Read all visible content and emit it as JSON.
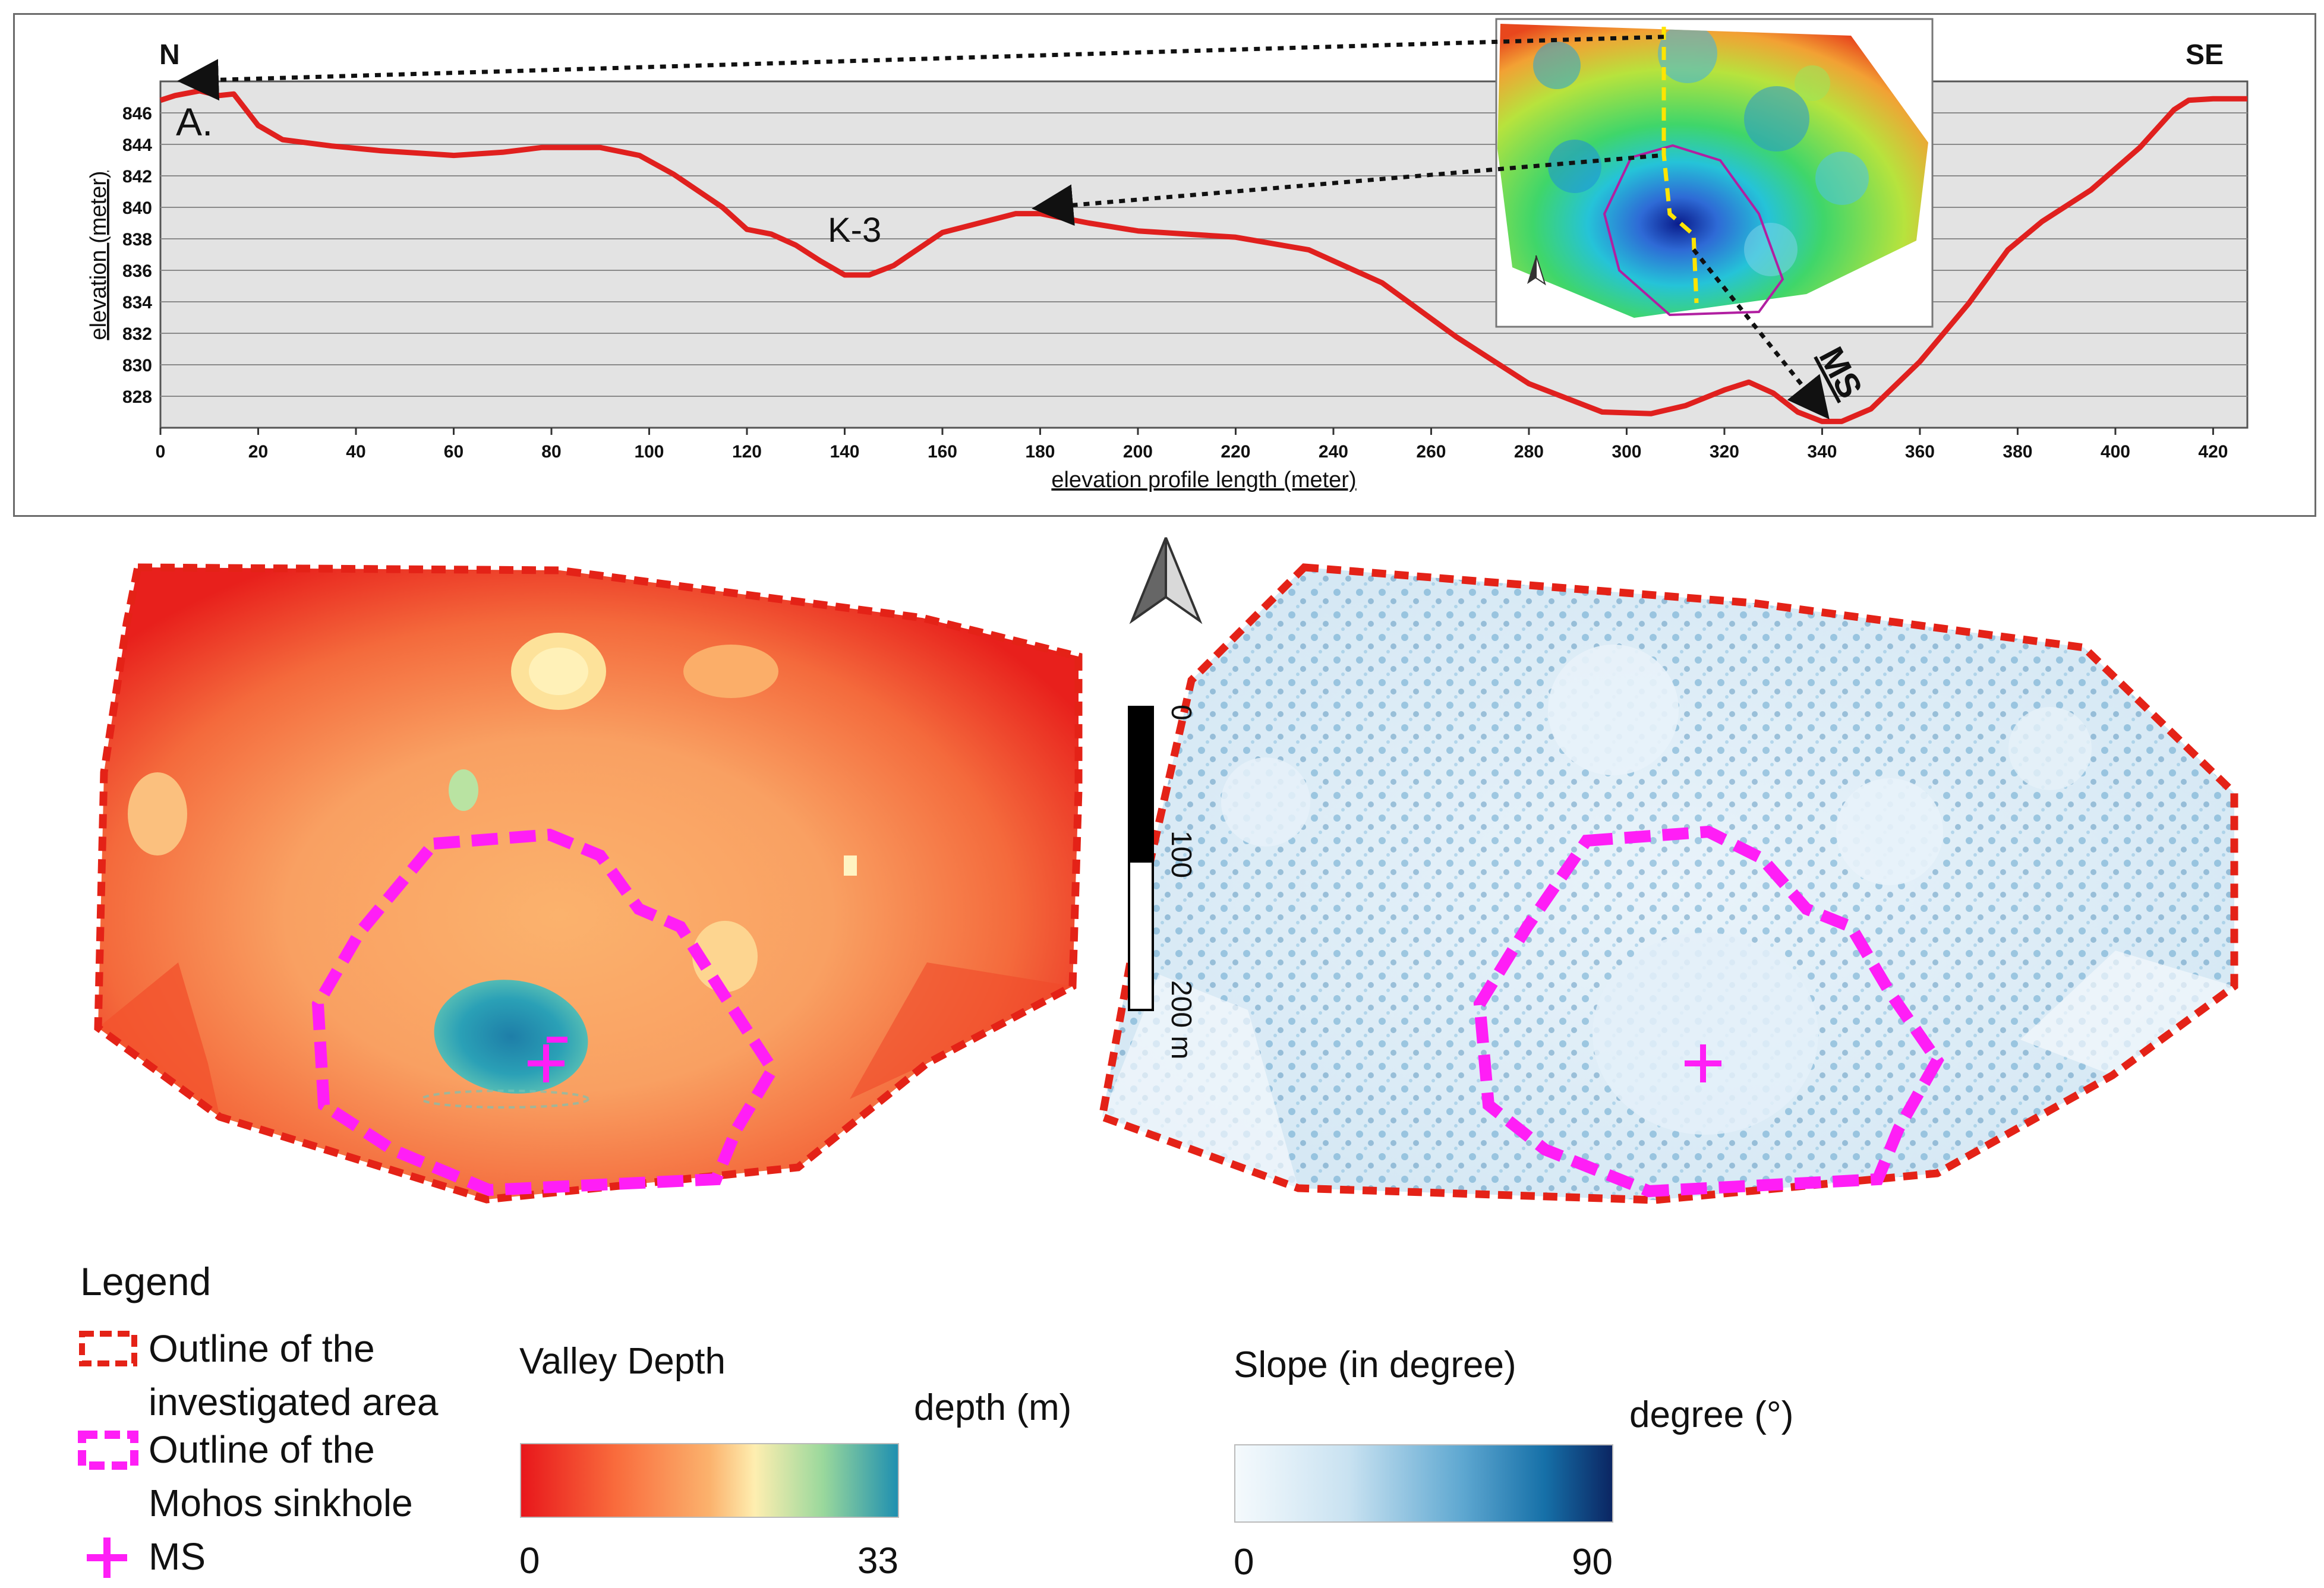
{
  "profile": {
    "start_dir": "N",
    "end_dir": "SE",
    "panel_label": "A.",
    "point_k3": "K-3",
    "point_ms": "MS",
    "ylabel": "elevation (meter)",
    "xlabel": "elevation profile length (meter)"
  },
  "chart_data": {
    "type": "line",
    "title": "",
    "xlabel": "elevation profile length (meter)",
    "ylabel": "elevation (meter)",
    "xlim": [
      0,
      427
    ],
    "ylim": [
      826,
      848
    ],
    "grid": true,
    "x_ticks": [
      0,
      20,
      40,
      60,
      80,
      100,
      120,
      140,
      160,
      180,
      200,
      220,
      240,
      260,
      280,
      300,
      320,
      340,
      360,
      380,
      400,
      420
    ],
    "y_ticks": [
      828,
      830,
      832,
      834,
      836,
      838,
      840,
      842,
      844,
      846
    ],
    "series": [
      {
        "name": "elevation profile",
        "color": "#e0201e",
        "x": [
          0,
          3,
          8,
          12,
          15,
          17,
          20,
          25,
          35,
          45,
          55,
          60,
          70,
          78,
          90,
          98,
          105,
          115,
          120,
          125,
          130,
          135,
          140,
          145,
          150,
          160,
          175,
          180,
          190,
          200,
          220,
          235,
          250,
          265,
          280,
          295,
          305,
          312,
          320,
          325,
          330,
          335,
          340,
          344,
          350,
          360,
          370,
          378,
          385,
          395,
          405,
          412,
          415,
          420,
          427
        ],
        "y": [
          846.8,
          847.1,
          847.4,
          847.1,
          847.2,
          846.4,
          845.2,
          844.3,
          843.9,
          843.6,
          843.4,
          843.3,
          843.5,
          843.8,
          843.8,
          843.3,
          842.1,
          840.0,
          838.6,
          838.3,
          837.6,
          836.6,
          835.7,
          835.7,
          836.3,
          838.4,
          839.6,
          839.6,
          839.0,
          838.5,
          838.1,
          837.3,
          835.2,
          831.8,
          828.8,
          827.0,
          826.9,
          827.4,
          828.4,
          828.9,
          828.2,
          827.0,
          826.4,
          826.4,
          827.2,
          830.2,
          833.9,
          837.3,
          839.1,
          841.1,
          843.8,
          846.2,
          846.8,
          846.9,
          846.9
        ]
      }
    ]
  },
  "inset_map": {
    "north_arrow": "north-arrow"
  },
  "scale_bar": {
    "zero": "0",
    "mid": "100",
    "end": "200 m"
  },
  "legend": {
    "title": "Legend",
    "items": [
      {
        "line1": "Outline of the",
        "line2": "investigated area",
        "color": "#e42217"
      },
      {
        "line1": "Outline of the",
        "line2": "Mohos sinkhole",
        "color": "#ff1ef6"
      },
      {
        "line1": "MS",
        "color": "#ff1ef6"
      }
    ]
  },
  "valley_depth": {
    "title": "Valley Depth",
    "unit": "depth (m)",
    "min": "0",
    "max": "33",
    "ramp": [
      "#e8161b",
      "#f96b3c",
      "#fbb26d",
      "#feeeb0",
      "#9ad89c",
      "#1e8fb0"
    ]
  },
  "slope": {
    "title": "Slope (in degree)",
    "unit": "degree (°)",
    "min": "0",
    "max": "90",
    "ramp": [
      "#f5fafd",
      "#c9e2f1",
      "#5fa8d1",
      "#1670a8",
      "#0b2562"
    ]
  }
}
